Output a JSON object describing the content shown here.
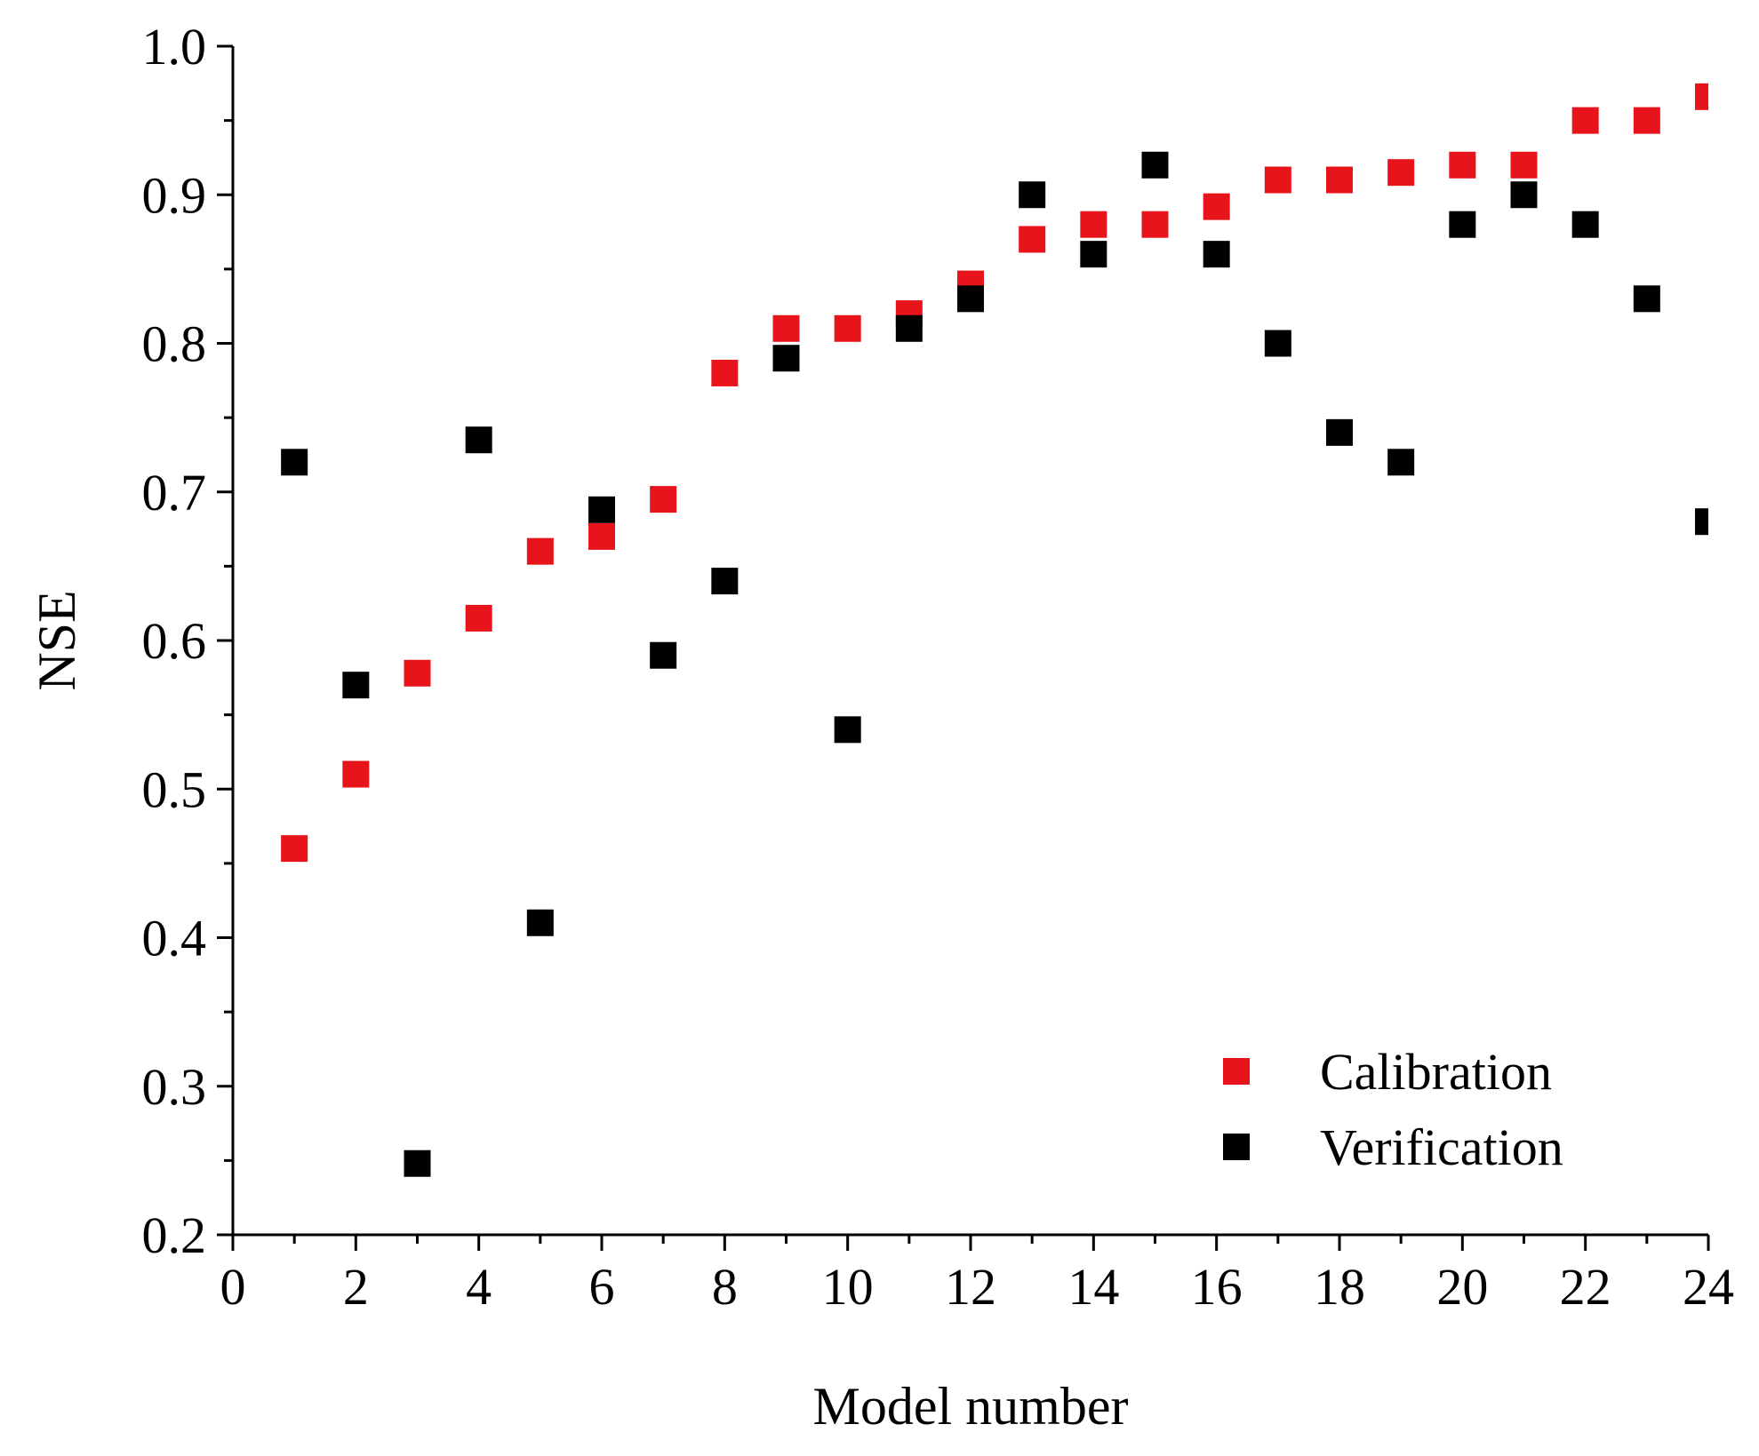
{
  "chart_data": {
    "type": "scatter",
    "title": "",
    "xlabel": "Model number",
    "ylabel": "NSE",
    "xlim": [
      0,
      24
    ],
    "ylim": [
      0.2,
      1.0
    ],
    "x_ticks": [
      0,
      2,
      4,
      6,
      8,
      10,
      12,
      14,
      16,
      18,
      20,
      22,
      24
    ],
    "y_ticks": [
      0.2,
      0.3,
      0.4,
      0.5,
      0.6,
      0.7,
      0.8,
      0.9,
      1.0
    ],
    "x_tick_labels": [
      "0",
      "2",
      "4",
      "6",
      "8",
      "10",
      "12",
      "14",
      "16",
      "18",
      "20",
      "22",
      "24"
    ],
    "y_tick_labels": [
      "0.2",
      "0.3",
      "0.4",
      "0.5",
      "0.6",
      "0.7",
      "0.8",
      "0.9",
      "1.0"
    ],
    "grid": false,
    "legend_position": "bottom-right",
    "series": [
      {
        "name": "Calibration",
        "color": "#e8141b",
        "marker": "square",
        "x": [
          1,
          2,
          3,
          4,
          5,
          6,
          7,
          8,
          9,
          10,
          11,
          12,
          13,
          14,
          15,
          16,
          17,
          18,
          19,
          20,
          21,
          22,
          23,
          24
        ],
        "values": [
          0.46,
          0.51,
          0.578,
          0.615,
          0.66,
          0.67,
          0.695,
          0.78,
          0.81,
          0.81,
          0.82,
          0.84,
          0.87,
          0.88,
          0.88,
          0.892,
          0.91,
          0.91,
          0.915,
          0.92,
          0.92,
          0.95,
          0.95,
          0.966
        ]
      },
      {
        "name": "Verification",
        "color": "#000000",
        "marker": "square",
        "x": [
          1,
          2,
          3,
          4,
          5,
          6,
          7,
          8,
          9,
          10,
          11,
          12,
          13,
          14,
          15,
          16,
          17,
          18,
          19,
          20,
          21,
          22,
          23,
          24
        ],
        "values": [
          0.72,
          0.57,
          0.248,
          0.735,
          0.41,
          0.688,
          0.59,
          0.64,
          0.79,
          0.54,
          0.81,
          0.83,
          0.9,
          0.86,
          0.92,
          0.86,
          0.8,
          0.74,
          0.72,
          0.88,
          0.9,
          0.88,
          0.83,
          0.68
        ]
      }
    ]
  }
}
